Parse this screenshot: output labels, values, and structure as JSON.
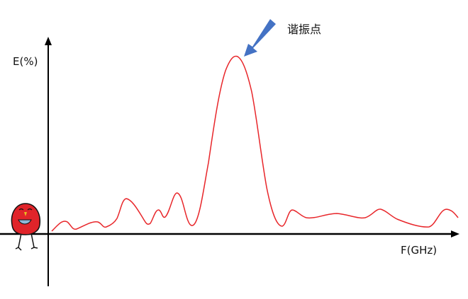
{
  "labels": {
    "y_axis": "E(%)",
    "x_axis": "F(GHz)",
    "annotation": "谐振点"
  },
  "colors": {
    "curve": "#e8262a",
    "arrow": "#4472c4",
    "axes": "#000000",
    "mascot": "#e0242a"
  },
  "icons": {
    "mascot": "red-bird-sticker-icon"
  }
}
